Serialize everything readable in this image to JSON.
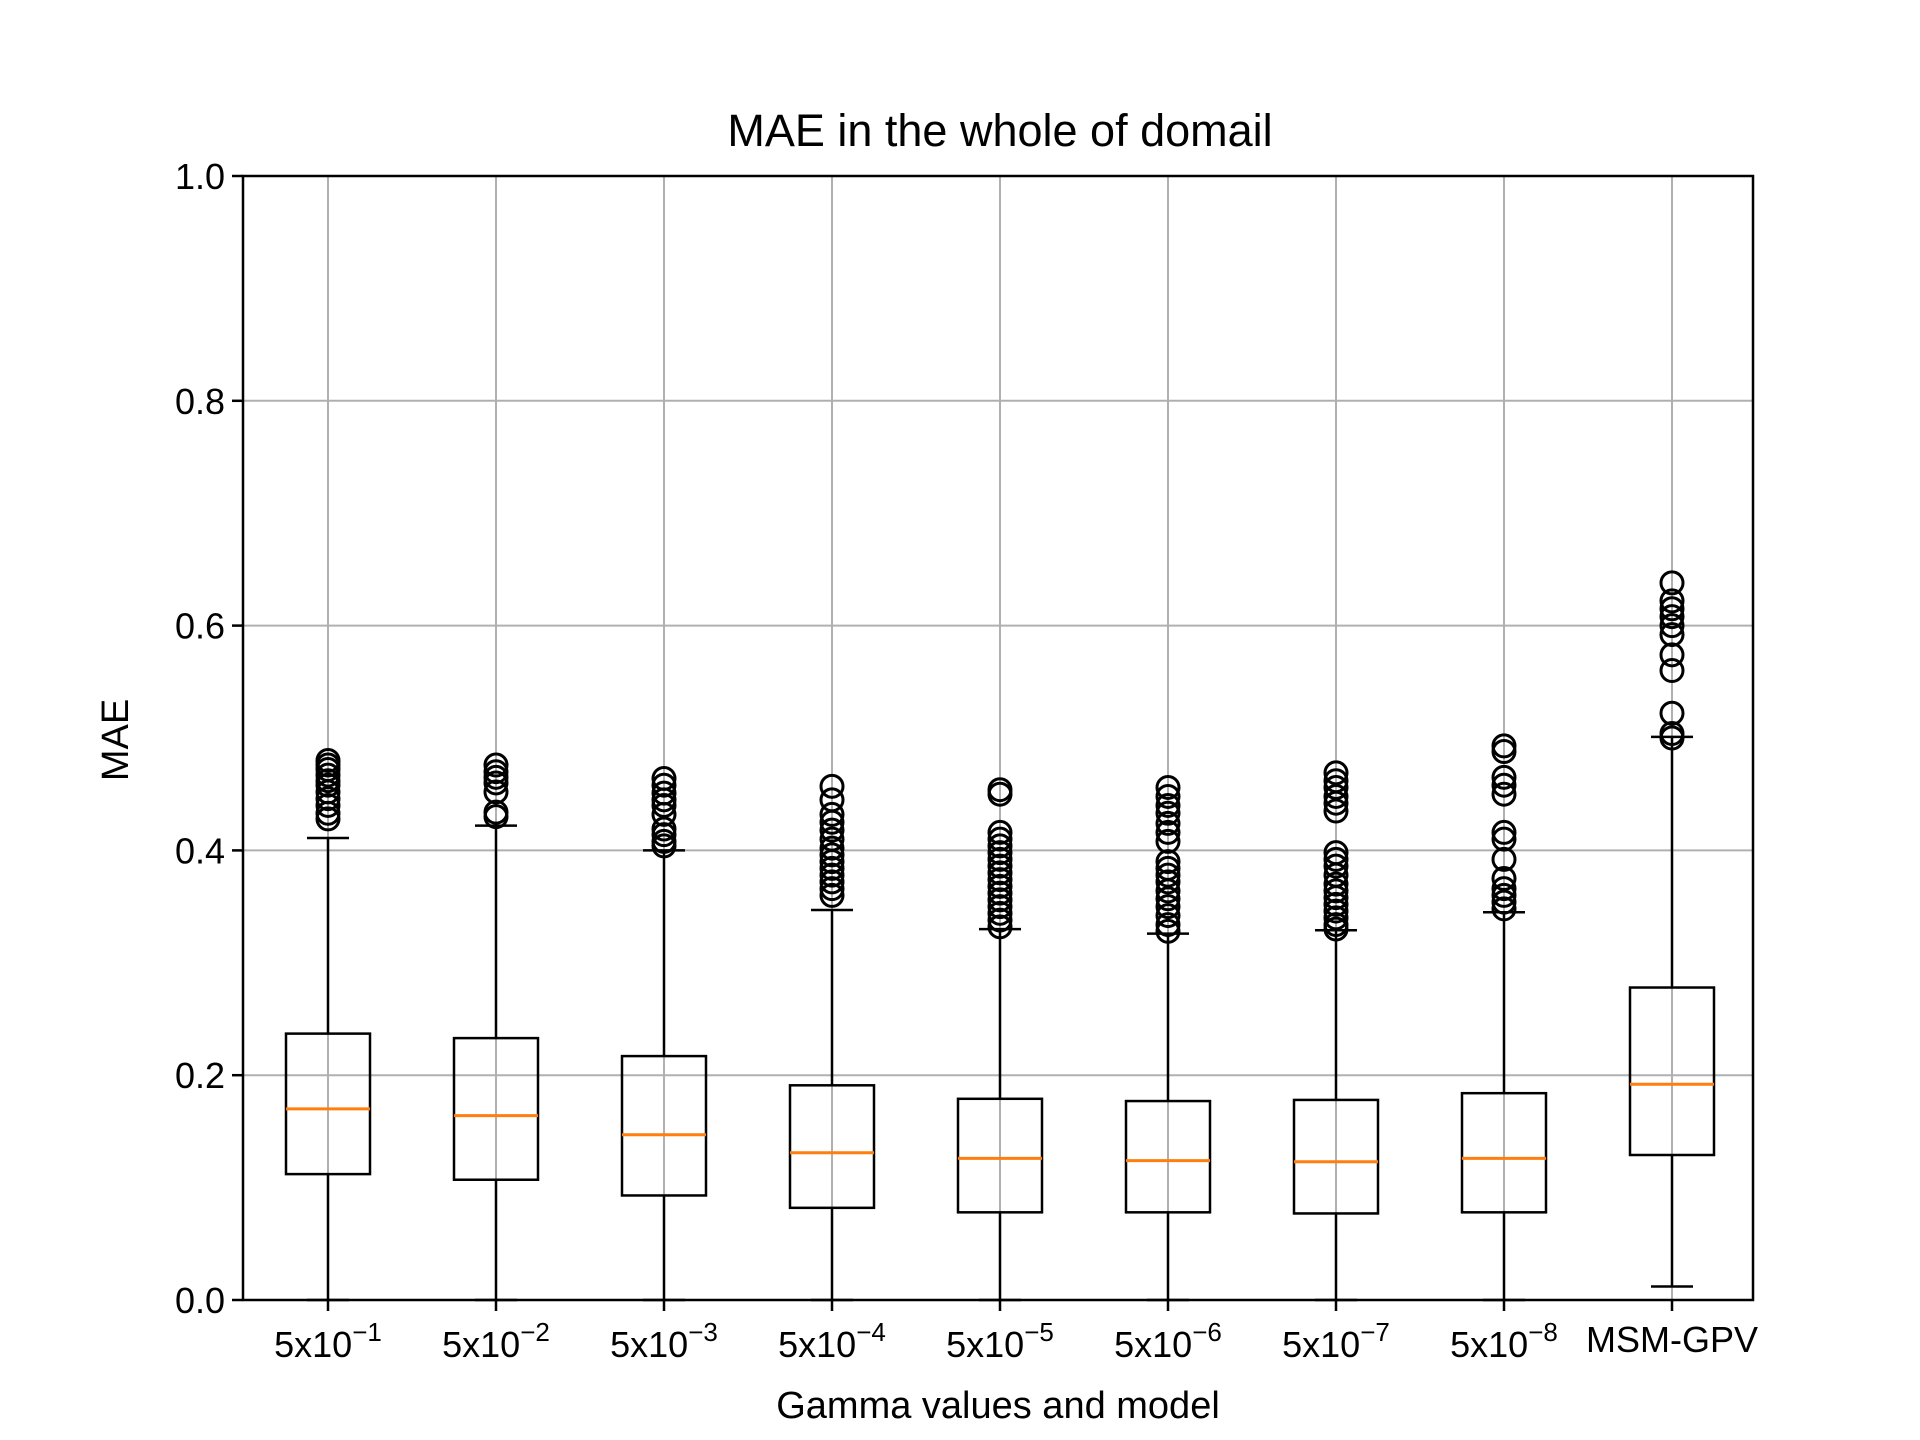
{
  "chart_data": {
    "type": "boxplot",
    "title": "MAE in the whole of domail",
    "xlabel": "Gamma values and model",
    "ylabel": "MAE",
    "ylim": [
      0.0,
      1.0
    ],
    "yticks": [
      "0.0",
      "0.2",
      "0.4",
      "0.6",
      "0.8",
      "1.0"
    ],
    "grid": true,
    "colors": {
      "box": "#000000",
      "median": "#ff7f0e",
      "grid": "#b0b0b0"
    },
    "categories": [
      {
        "base": "5x10",
        "exp": "−1"
      },
      {
        "base": "5x10",
        "exp": "−2"
      },
      {
        "base": "5x10",
        "exp": "−3"
      },
      {
        "base": "5x10",
        "exp": "−4"
      },
      {
        "base": "5x10",
        "exp": "−5"
      },
      {
        "base": "5x10",
        "exp": "−6"
      },
      {
        "base": "5x10",
        "exp": "−7"
      },
      {
        "base": "5x10",
        "exp": "−8"
      },
      {
        "base": "MSM-GPV",
        "exp": ""
      }
    ],
    "series": [
      {
        "whislo": 0.0,
        "q1": 0.112,
        "median": 0.17,
        "q3": 0.237,
        "whishi": 0.411,
        "fliers": [
          0.428,
          0.433,
          0.44,
          0.446,
          0.452,
          0.458,
          0.462,
          0.467,
          0.472,
          0.476,
          0.48
        ]
      },
      {
        "whislo": 0.0,
        "q1": 0.107,
        "median": 0.164,
        "q3": 0.233,
        "whishi": 0.422,
        "fliers": [
          0.43,
          0.434,
          0.452,
          0.46,
          0.465,
          0.47,
          0.476
        ]
      },
      {
        "whislo": 0.0,
        "q1": 0.093,
        "median": 0.147,
        "q3": 0.217,
        "whishi": 0.4,
        "fliers": [
          0.404,
          0.408,
          0.414,
          0.419,
          0.432,
          0.44,
          0.445,
          0.451,
          0.458,
          0.464
        ]
      },
      {
        "whislo": 0.0,
        "q1": 0.082,
        "median": 0.131,
        "q3": 0.191,
        "whishi": 0.347,
        "fliers": [
          0.36,
          0.366,
          0.372,
          0.378,
          0.384,
          0.39,
          0.396,
          0.402,
          0.41,
          0.418,
          0.425,
          0.432,
          0.445,
          0.457
        ]
      },
      {
        "whislo": 0.0,
        "q1": 0.078,
        "median": 0.126,
        "q3": 0.179,
        "whishi": 0.33,
        "fliers": [
          0.332,
          0.338,
          0.344,
          0.35,
          0.356,
          0.362,
          0.368,
          0.374,
          0.38,
          0.386,
          0.392,
          0.398,
          0.404,
          0.41,
          0.416,
          0.45,
          0.454
        ]
      },
      {
        "whislo": 0.0,
        "q1": 0.078,
        "median": 0.124,
        "q3": 0.177,
        "whishi": 0.326,
        "fliers": [
          0.328,
          0.334,
          0.342,
          0.35,
          0.357,
          0.364,
          0.372,
          0.378,
          0.384,
          0.39,
          0.408,
          0.416,
          0.424,
          0.433,
          0.44,
          0.448,
          0.456
        ]
      },
      {
        "whislo": 0.0,
        "q1": 0.077,
        "median": 0.123,
        "q3": 0.178,
        "whishi": 0.329,
        "fliers": [
          0.33,
          0.334,
          0.34,
          0.346,
          0.352,
          0.358,
          0.364,
          0.37,
          0.378,
          0.386,
          0.392,
          0.398,
          0.435,
          0.442,
          0.448,
          0.456,
          0.462,
          0.469
        ]
      },
      {
        "whislo": 0.0,
        "q1": 0.078,
        "median": 0.126,
        "q3": 0.184,
        "whishi": 0.345,
        "fliers": [
          0.348,
          0.354,
          0.36,
          0.366,
          0.375,
          0.392,
          0.41,
          0.416,
          0.45,
          0.458,
          0.465,
          0.488,
          0.493
        ]
      },
      {
        "whislo": 0.012,
        "q1": 0.129,
        "median": 0.192,
        "q3": 0.278,
        "whishi": 0.501,
        "fliers": [
          0.5,
          0.504,
          0.522,
          0.56,
          0.574,
          0.592,
          0.6,
          0.608,
          0.615,
          0.622,
          0.638
        ]
      }
    ]
  }
}
